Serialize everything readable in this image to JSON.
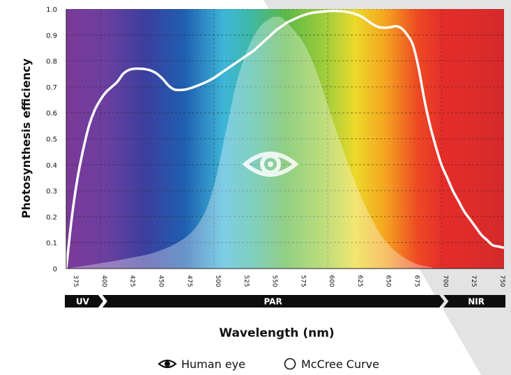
{
  "chart_data": {
    "type": "area",
    "ylabel": "Photosynthesis efficiency",
    "xlabel": "Wavelength (nm)",
    "xlim": [
      370,
      755
    ],
    "ylim": [
      0,
      1.0
    ],
    "x_ticks": [
      "375",
      "400",
      "425",
      "450",
      "475",
      "500",
      "525",
      "550",
      "575",
      "600",
      "625",
      "650",
      "675",
      "700",
      "725",
      "750"
    ],
    "y_ticks": [
      "0",
      "0.1",
      "0.2",
      "0.3",
      "0.4",
      "0.5",
      "0.6",
      "0.7",
      "0.8",
      "0.9",
      "1.0"
    ],
    "grid": true,
    "series": [
      {
        "name": "McCree Curve",
        "color": "#ffffff",
        "x": [
          370,
          375,
          380,
          385,
          390,
          395,
          400,
          405,
          410,
          415,
          420,
          425,
          430,
          435,
          440,
          445,
          450,
          455,
          460,
          465,
          470,
          475,
          480,
          485,
          490,
          495,
          500,
          505,
          510,
          515,
          520,
          525,
          530,
          535,
          540,
          545,
          550,
          555,
          560,
          565,
          570,
          575,
          580,
          585,
          590,
          595,
          600,
          605,
          610,
          615,
          620,
          625,
          630,
          635,
          640,
          645,
          650,
          655,
          660,
          665,
          670,
          675,
          680,
          685,
          690,
          695,
          700,
          705,
          710,
          715,
          720,
          725,
          730,
          735,
          740,
          745,
          750,
          755
        ],
        "values": [
          0.0,
          0.2,
          0.35,
          0.46,
          0.55,
          0.61,
          0.65,
          0.68,
          0.7,
          0.72,
          0.75,
          0.765,
          0.77,
          0.77,
          0.768,
          0.762,
          0.75,
          0.73,
          0.705,
          0.69,
          0.688,
          0.69,
          0.696,
          0.704,
          0.713,
          0.723,
          0.735,
          0.75,
          0.765,
          0.78,
          0.795,
          0.81,
          0.825,
          0.84,
          0.86,
          0.88,
          0.9,
          0.92,
          0.935,
          0.95,
          0.96,
          0.97,
          0.978,
          0.984,
          0.988,
          0.99,
          0.992,
          0.993,
          0.992,
          0.99,
          0.986,
          0.98,
          0.97,
          0.955,
          0.94,
          0.93,
          0.928,
          0.93,
          0.934,
          0.925,
          0.9,
          0.86,
          0.77,
          0.65,
          0.55,
          0.47,
          0.4,
          0.35,
          0.3,
          0.26,
          0.22,
          0.19,
          0.16,
          0.13,
          0.11,
          0.09,
          0.085,
          0.08
        ]
      },
      {
        "name": "Human eye",
        "color": "#ffffff",
        "x": [
          370,
          400,
          425,
          450,
          475,
          490,
          500,
          510,
          520,
          530,
          540,
          550,
          555,
          560,
          570,
          580,
          590,
          600,
          610,
          620,
          630,
          640,
          650,
          660,
          670,
          680,
          690,
          700,
          755
        ],
        "values": [
          0.0,
          0.02,
          0.04,
          0.065,
          0.12,
          0.2,
          0.32,
          0.52,
          0.72,
          0.85,
          0.93,
          0.965,
          0.97,
          0.965,
          0.92,
          0.86,
          0.76,
          0.63,
          0.5,
          0.38,
          0.27,
          0.18,
          0.11,
          0.065,
          0.035,
          0.015,
          0.006,
          0.0,
          0.0
        ]
      }
    ],
    "bands": [
      {
        "label": "UV",
        "from": 370,
        "to": 400
      },
      {
        "label": "PAR",
        "from": 400,
        "to": 700
      },
      {
        "label": "NIR",
        "from": 700,
        "to": 755
      }
    ]
  },
  "legend": {
    "human_eye_label": "Human eye",
    "mccree_label": "McCree Curve",
    "placement": "bottom-center"
  }
}
